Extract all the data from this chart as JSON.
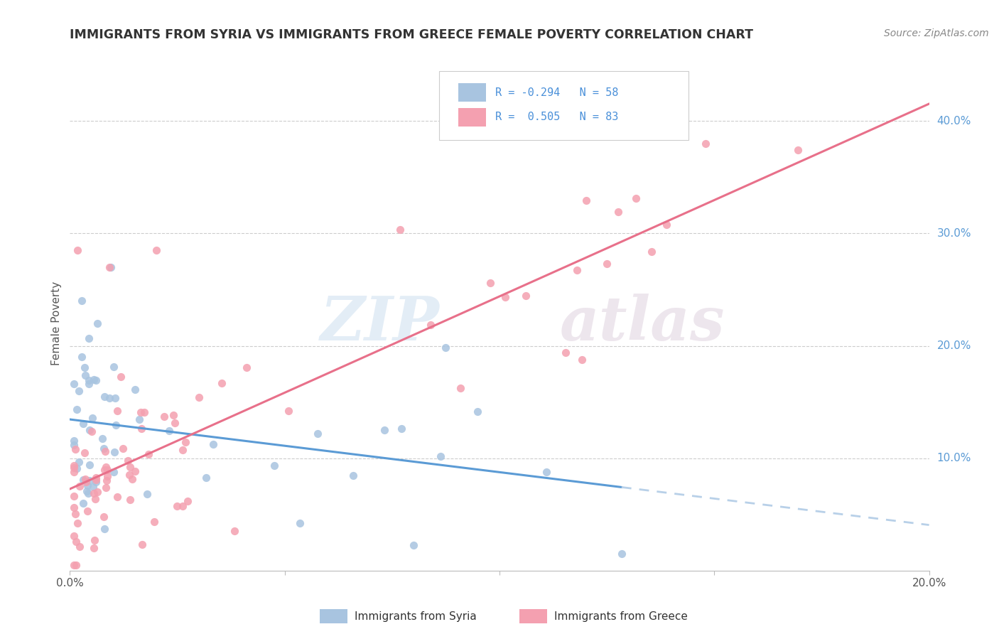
{
  "title": "IMMIGRANTS FROM SYRIA VS IMMIGRANTS FROM GREECE FEMALE POVERTY CORRELATION CHART",
  "source": "Source: ZipAtlas.com",
  "ylabel": "Female Poverty",
  "legend_syria": "Immigrants from Syria",
  "legend_greece": "Immigrants from Greece",
  "r_syria": -0.294,
  "n_syria": 58,
  "r_greece": 0.505,
  "n_greece": 83,
  "syria_color": "#a8c4e0",
  "greece_color": "#f4a0b0",
  "trendline_syria_solid": "#5b9bd5",
  "trendline_greece_solid": "#e8708a",
  "trendline_syria_dashed": "#b8d0e8",
  "watermark_zip": "ZIP",
  "watermark_atlas": "atlas",
  "xlim": [
    0.0,
    0.2
  ],
  "ylim": [
    0.0,
    0.44
  ],
  "yticks": [
    0.1,
    0.2,
    0.3,
    0.4
  ],
  "ytick_labels": [
    "10.0%",
    "20.0%",
    "30.0%",
    "40.0%"
  ],
  "xticks": [
    0.0,
    0.05,
    0.1,
    0.15,
    0.2
  ],
  "xtick_labels": [
    "0.0%",
    "",
    "",
    "",
    "20.0%"
  ]
}
